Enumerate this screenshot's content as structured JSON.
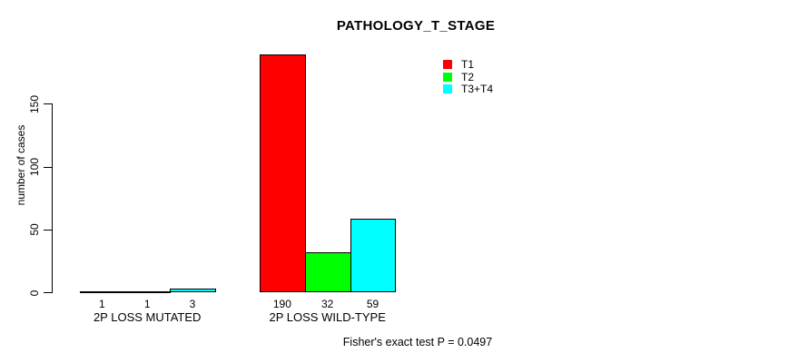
{
  "chart_data": {
    "type": "bar",
    "title": "PATHOLOGY_T_STAGE",
    "ylabel": "number of cases",
    "xlabel": "",
    "categories": [
      "2P LOSS MUTATED",
      "2P LOSS WILD-TYPE"
    ],
    "series": [
      {
        "name": "T1",
        "color": "#ff0000",
        "values": [
          1,
          190
        ]
      },
      {
        "name": "T2",
        "color": "#00ff00",
        "values": [
          1,
          32
        ]
      },
      {
        "name": "T3+T4",
        "color": "#00ffff",
        "values": [
          3,
          59
        ]
      }
    ],
    "yticks": [
      0,
      50,
      100,
      150
    ],
    "ylim": [
      0,
      190
    ],
    "grid": false,
    "legend_position": "top-right-inside",
    "annotation": "Fisher's exact test P = 0.0497"
  },
  "colors": {
    "axis": "#000000",
    "background": "#ffffff",
    "text": "#000000"
  }
}
